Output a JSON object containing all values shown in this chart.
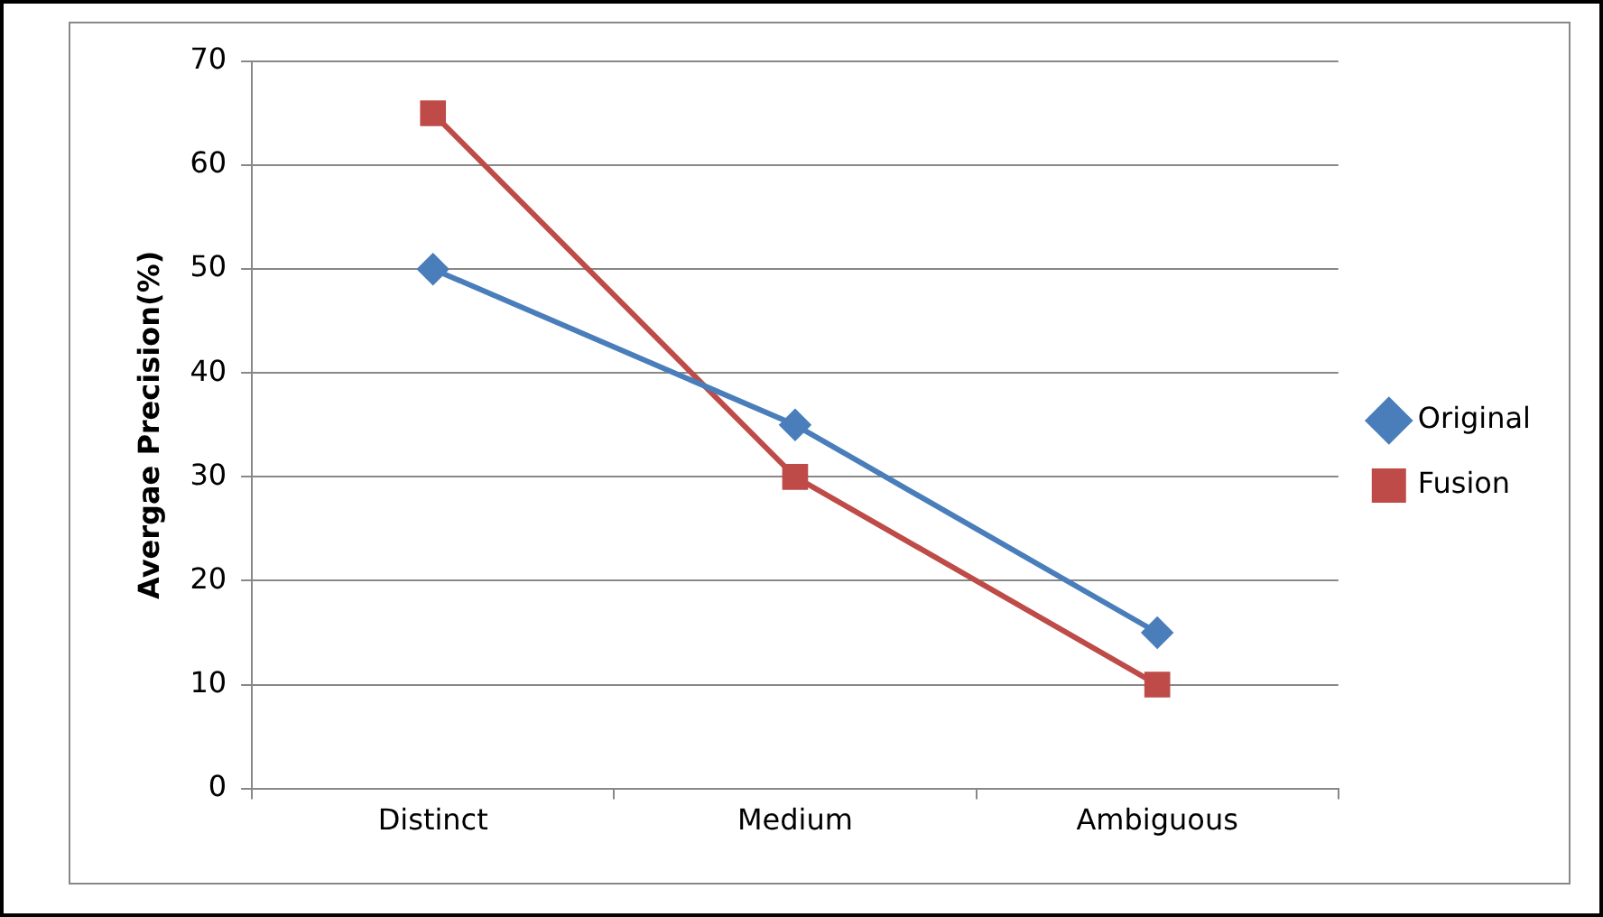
{
  "chart_data": {
    "type": "line",
    "ylabel": "Avergae Precision(%)",
    "categories": [
      "Distinct",
      "Medium",
      "Ambiguous"
    ],
    "series": [
      {
        "name": "Original",
        "color": "#4a7ebb",
        "values": [
          50,
          35,
          15
        ],
        "marker": "diamond"
      },
      {
        "name": "Fusion",
        "color": "#be4b48",
        "values": [
          65,
          30,
          10
        ],
        "marker": "square"
      }
    ],
    "ylim": [
      0,
      70
    ],
    "yticks": [
      0,
      10,
      20,
      30,
      40,
      50,
      60,
      70
    ],
    "grid": "y",
    "legend": "right",
    "line_style": "solid"
  }
}
